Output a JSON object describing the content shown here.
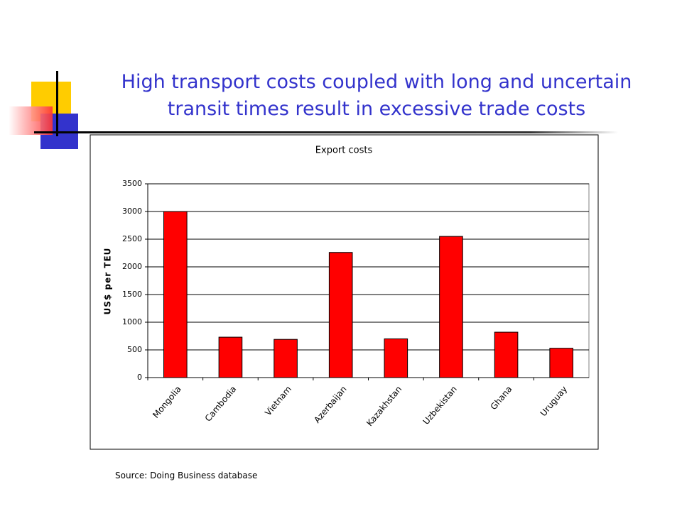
{
  "slide": {
    "title_lines": [
      "High transport costs coupled with long and uncertain",
      "transit times result in excessive trade costs"
    ],
    "source": "Source: Doing Business database"
  },
  "chart_data": {
    "type": "bar",
    "title": "Export costs",
    "y_label": "US$ per TEU",
    "categories": [
      "Mongolia",
      "Cambodia",
      "Vietnam",
      "Azerbaijan",
      "Kazakhstan",
      "Uzbekistan",
      "Ghana",
      "Uruguay"
    ],
    "values": [
      3000,
      730,
      690,
      2260,
      700,
      2550,
      820,
      530
    ],
    "color": "#ff0000",
    "ylim": [
      0,
      3500
    ],
    "yticks": [
      0,
      500,
      1000,
      1500,
      2000,
      2500,
      3000,
      3500
    ],
    "grid": true
  }
}
